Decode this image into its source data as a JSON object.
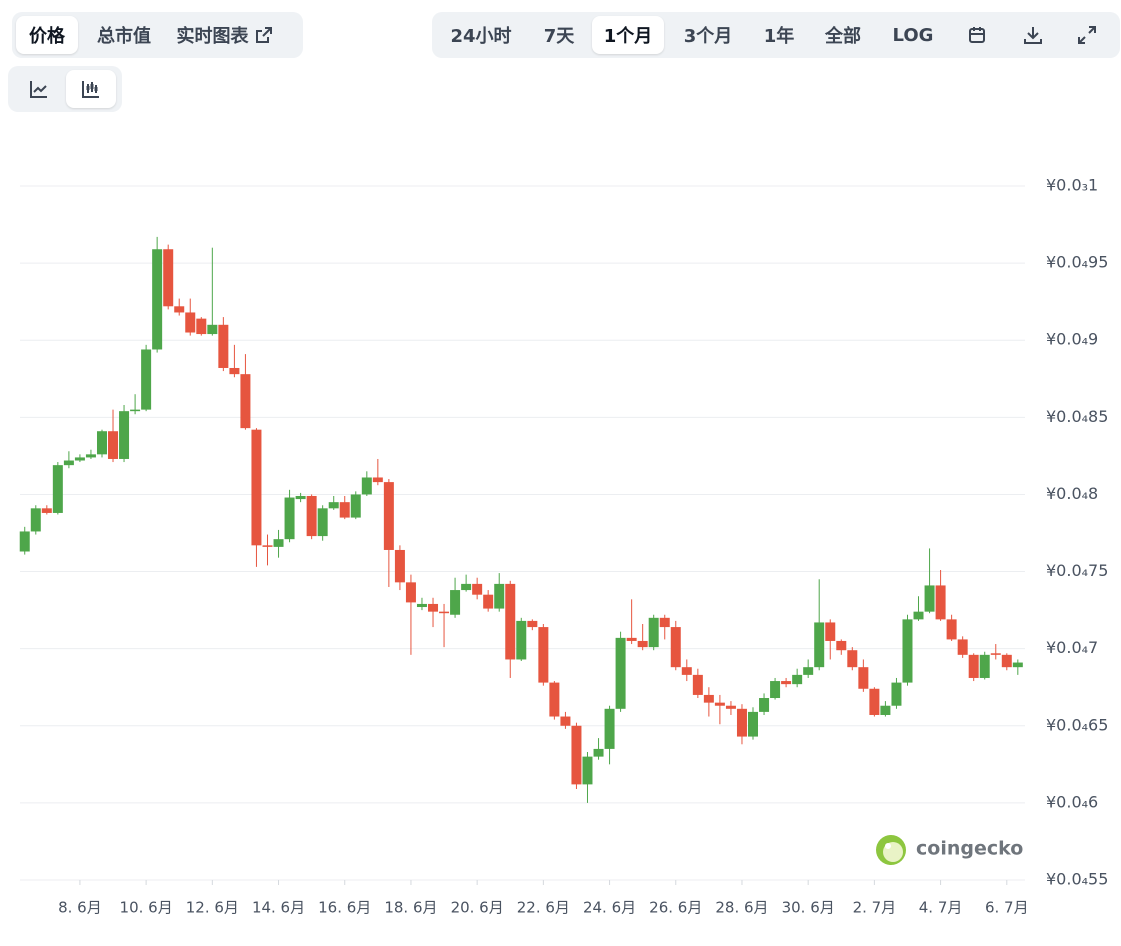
{
  "toolbar": {
    "metric_tabs": [
      "价格",
      "总市值",
      "实时图表"
    ],
    "range_tabs": [
      "24小时",
      "7天",
      "1个月",
      "3个月",
      "1年",
      "全部",
      "LOG"
    ]
  },
  "watermark": "coingecko",
  "chart_data": {
    "type": "candlestick",
    "x": [
      6.333,
      6.667,
      7,
      7.333,
      7.667,
      8,
      8.333,
      8.667,
      9,
      9.333,
      9.667,
      10,
      10.333,
      10.667,
      11,
      11.333,
      11.667,
      12,
      12.333,
      12.667,
      13,
      13.333,
      13.667,
      14,
      14.333,
      14.667,
      15,
      15.333,
      15.667,
      16,
      16.333,
      16.667,
      17,
      17.333,
      17.667,
      18,
      18.333,
      18.667,
      19,
      19.333,
      19.667,
      20,
      20.333,
      20.667,
      21,
      21.333,
      21.667,
      22,
      22.333,
      22.667,
      23,
      23.333,
      23.667,
      24,
      24.333,
      24.667,
      25,
      25.333,
      25.667,
      26,
      26.333,
      26.667,
      27,
      27.333,
      27.667,
      28,
      28.333,
      28.667,
      29,
      29.333,
      29.667,
      30,
      30.333,
      30.667,
      31,
      31.333,
      31.667,
      32,
      32.333,
      32.667,
      33,
      33.333,
      33.667,
      34,
      34.333,
      34.667,
      35,
      35.333,
      35.667,
      36,
      36.333
    ],
    "open": [
      7.63e-05,
      7.76e-05,
      7.91e-05,
      7.88e-05,
      8.19e-05,
      8.22e-05,
      8.24e-05,
      8.26e-05,
      8.41e-05,
      8.23e-05,
      8.54e-05,
      8.55e-05,
      8.94e-05,
      9.59e-05,
      9.22e-05,
      9.18e-05,
      9.14e-05,
      9.04e-05,
      9.1e-05,
      8.82e-05,
      8.78e-05,
      8.42e-05,
      7.67e-05,
      7.66e-05,
      7.71e-05,
      7.97e-05,
      7.99e-05,
      7.73e-05,
      7.91e-05,
      7.95e-05,
      7.85e-05,
      8e-05,
      8.11e-05,
      8.08e-05,
      7.64e-05,
      7.43e-05,
      7.27e-05,
      7.29e-05,
      7.24e-05,
      7.22e-05,
      7.38e-05,
      7.42e-05,
      7.35e-05,
      7.26e-05,
      7.42e-05,
      6.93e-05,
      7.18e-05,
      7.14e-05,
      6.78e-05,
      6.56e-05,
      6.5e-05,
      6.12e-05,
      6.3e-05,
      6.35e-05,
      6.61e-05,
      7.07e-05,
      7.05e-05,
      7.01e-05,
      7.2e-05,
      7.14e-05,
      6.88e-05,
      6.83e-05,
      6.7e-05,
      6.65e-05,
      6.63e-05,
      6.61e-05,
      6.43e-05,
      6.59e-05,
      6.68e-05,
      6.79e-05,
      6.77e-05,
      6.83e-05,
      6.88e-05,
      7.17e-05,
      7.05e-05,
      6.99e-05,
      6.88e-05,
      6.74e-05,
      6.57e-05,
      6.63e-05,
      6.78e-05,
      7.19e-05,
      7.24e-05,
      7.41e-05,
      7.19e-05,
      7.06e-05,
      6.96e-05,
      6.81e-05,
      6.97e-05,
      6.96e-05,
      6.88e-05
    ],
    "high": [
      7.79e-05,
      7.93e-05,
      7.93e-05,
      8.21e-05,
      8.28e-05,
      8.26e-05,
      8.29e-05,
      8.42e-05,
      8.55e-05,
      8.58e-05,
      8.65e-05,
      8.97e-05,
      9.67e-05,
      9.62e-05,
      9.27e-05,
      9.27e-05,
      9.15e-05,
      9.6e-05,
      9.15e-05,
      8.97e-05,
      8.91e-05,
      8.43e-05,
      7.74e-05,
      7.77e-05,
      8.03e-05,
      8.01e-05,
      8e-05,
      7.93e-05,
      7.99e-05,
      7.99e-05,
      8.02e-05,
      8.15e-05,
      8.23e-05,
      8.1e-05,
      7.67e-05,
      7.48e-05,
      7.33e-05,
      7.33e-05,
      7.29e-05,
      7.46e-05,
      7.48e-05,
      7.46e-05,
      7.38e-05,
      7.49e-05,
      7.44e-05,
      7.2e-05,
      7.19e-05,
      7.16e-05,
      6.79e-05,
      6.59e-05,
      6.52e-05,
      6.33e-05,
      6.42e-05,
      6.63e-05,
      7.11e-05,
      7.32e-05,
      7.16e-05,
      7.22e-05,
      7.22e-05,
      7.18e-05,
      6.93e-05,
      6.87e-05,
      6.75e-05,
      6.7e-05,
      6.66e-05,
      6.64e-05,
      6.62e-05,
      6.71e-05,
      6.81e-05,
      6.81e-05,
      6.87e-05,
      6.93e-05,
      7.45e-05,
      7.19e-05,
      7.06e-05,
      7.01e-05,
      6.93e-05,
      6.75e-05,
      6.66e-05,
      6.81e-05,
      7.22e-05,
      7.34e-05,
      7.65e-05,
      7.51e-05,
      7.22e-05,
      7.08e-05,
      6.97e-05,
      6.98e-05,
      7.03e-05,
      6.97e-05,
      6.93e-05
    ],
    "low": [
      7.61e-05,
      7.74e-05,
      7.87e-05,
      7.87e-05,
      8.17e-05,
      8.21e-05,
      8.23e-05,
      8.24e-05,
      8.21e-05,
      8.21e-05,
      8.52e-05,
      8.54e-05,
      8.92e-05,
      9.2e-05,
      9.16e-05,
      9.03e-05,
      9.03e-05,
      9.03e-05,
      8.8e-05,
      8.76e-05,
      8.42e-05,
      7.53e-05,
      7.54e-05,
      7.59e-05,
      7.69e-05,
      7.95e-05,
      7.71e-05,
      7.7e-05,
      7.9e-05,
      7.84e-05,
      7.84e-05,
      7.99e-05,
      8.06e-05,
      7.4e-05,
      7.38e-05,
      6.96e-05,
      7.25e-05,
      7.14e-05,
      7.01e-05,
      7.2e-05,
      7.37e-05,
      7.32e-05,
      7.24e-05,
      7.24e-05,
      6.81e-05,
      6.92e-05,
      7.12e-05,
      6.76e-05,
      6.54e-05,
      6.48e-05,
      6.09e-05,
      6e-05,
      6.28e-05,
      6.25e-05,
      6.59e-05,
      7.03e-05,
      6.99e-05,
      6.99e-05,
      7.06e-05,
      6.86e-05,
      6.79e-05,
      6.68e-05,
      6.56e-05,
      6.51e-05,
      6.57e-05,
      6.38e-05,
      6.41e-05,
      6.57e-05,
      6.67e-05,
      6.75e-05,
      6.75e-05,
      6.81e-05,
      6.86e-05,
      6.93e-05,
      6.96e-05,
      6.86e-05,
      6.72e-05,
      6.56e-05,
      6.56e-05,
      6.61e-05,
      6.76e-05,
      7.18e-05,
      7.23e-05,
      7.18e-05,
      7.05e-05,
      6.94e-05,
      6.79e-05,
      6.8e-05,
      6.93e-05,
      6.86e-05,
      6.83e-05
    ],
    "close": [
      7.76e-05,
      7.91e-05,
      7.88e-05,
      8.19e-05,
      8.22e-05,
      8.24e-05,
      8.26e-05,
      8.41e-05,
      8.23e-05,
      8.54e-05,
      8.55e-05,
      8.94e-05,
      9.59e-05,
      9.22e-05,
      9.18e-05,
      9.05e-05,
      9.04e-05,
      9.1e-05,
      8.82e-05,
      8.78e-05,
      8.43e-05,
      7.67e-05,
      7.66e-05,
      7.71e-05,
      7.98e-05,
      7.99e-05,
      7.73e-05,
      7.91e-05,
      7.95e-05,
      7.85e-05,
      8e-05,
      8.11e-05,
      8.08e-05,
      7.64e-05,
      7.43e-05,
      7.3e-05,
      7.29e-05,
      7.24e-05,
      7.23e-05,
      7.38e-05,
      7.42e-05,
      7.35e-05,
      7.26e-05,
      7.42e-05,
      6.93e-05,
      7.18e-05,
      7.14e-05,
      6.78e-05,
      6.56e-05,
      6.5e-05,
      6.12e-05,
      6.3e-05,
      6.35e-05,
      6.61e-05,
      7.07e-05,
      7.05e-05,
      7.01e-05,
      7.2e-05,
      7.14e-05,
      6.88e-05,
      6.83e-05,
      6.7e-05,
      6.65e-05,
      6.63e-05,
      6.61e-05,
      6.43e-05,
      6.59e-05,
      6.68e-05,
      6.79e-05,
      6.77e-05,
      6.83e-05,
      6.88e-05,
      7.17e-05,
      7.05e-05,
      6.99e-05,
      6.88e-05,
      6.74e-05,
      6.57e-05,
      6.63e-05,
      6.78e-05,
      7.19e-05,
      7.24e-05,
      7.41e-05,
      7.19e-05,
      7.06e-05,
      6.96e-05,
      6.81e-05,
      6.96e-05,
      6.96e-05,
      6.88e-05,
      6.91e-05
    ],
    "up_color": "#4ea64a",
    "down_color": "#e6553f",
    "xlim": [
      6.19,
      36.55
    ],
    "xticks": [
      {
        "value": 8,
        "label": "8. 6月"
      },
      {
        "value": 10,
        "label": "10. 6月"
      },
      {
        "value": 12,
        "label": "12. 6月"
      },
      {
        "value": 14,
        "label": "14. 6月"
      },
      {
        "value": 16,
        "label": "16. 6月"
      },
      {
        "value": 18,
        "label": "18. 6月"
      },
      {
        "value": 20,
        "label": "20. 6月"
      },
      {
        "value": 22,
        "label": "22. 6月"
      },
      {
        "value": 24,
        "label": "24. 6月"
      },
      {
        "value": 26,
        "label": "26. 6月"
      },
      {
        "value": 28,
        "label": "28. 6月"
      },
      {
        "value": 30,
        "label": "30. 6月"
      },
      {
        "value": 32,
        "label": "2. 7月"
      },
      {
        "value": 34,
        "label": "4. 7月"
      },
      {
        "value": 36,
        "label": "6. 7月"
      }
    ],
    "ylim": [
      5.5e-05,
      0.0001
    ],
    "yticks": [
      {
        "value": 0.0001,
        "label": "¥0.0₃1"
      },
      {
        "value": 9.5e-05,
        "label": "¥0.0₄95"
      },
      {
        "value": 9e-05,
        "label": "¥0.0₄9"
      },
      {
        "value": 8.5e-05,
        "label": "¥0.0₄85"
      },
      {
        "value": 8e-05,
        "label": "¥0.0₄8"
      },
      {
        "value": 7.5e-05,
        "label": "¥0.0₄75"
      },
      {
        "value": 7e-05,
        "label": "¥0.0₄7"
      },
      {
        "value": 6.5e-05,
        "label": "¥0.0₄65"
      },
      {
        "value": 6e-05,
        "label": "¥0.0₄6"
      },
      {
        "value": 5.5e-05,
        "label": "¥0.0₄55"
      }
    ],
    "grid": true
  }
}
